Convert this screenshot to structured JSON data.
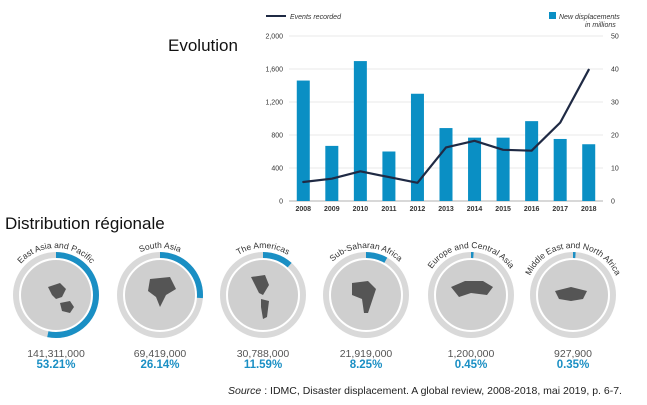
{
  "evolution_title": "Evolution",
  "distribution_title": "Distribution régionale",
  "legend": {
    "line_label": "Events recorded",
    "bar_label_line1": "New displacements",
    "bar_label_line2": "in millions"
  },
  "colors": {
    "bar": "#0a8fc4",
    "line": "#1f2a44",
    "ring_bg": "#d9d9d9",
    "ring_fg": "#1a8fc4",
    "globe": "#cfcfcf",
    "land": "#555555"
  },
  "chart_data": {
    "type": "bar",
    "categories": [
      "2008",
      "2009",
      "2010",
      "2011",
      "2012",
      "2013",
      "2014",
      "2015",
      "2016",
      "2017",
      "2018"
    ],
    "series": [
      {
        "name": "New displacements in millions",
        "axis": "right",
        "values": [
          36.5,
          16.7,
          42.4,
          15.0,
          32.5,
          22.1,
          19.2,
          19.2,
          24.2,
          18.8,
          17.2
        ]
      },
      {
        "name": "Events recorded",
        "axis": "left",
        "type": "line",
        "values": [
          230,
          270,
          360,
          290,
          220,
          650,
          730,
          620,
          610,
          950,
          1590
        ]
      }
    ],
    "y_left": {
      "ticks": [
        "0",
        "400",
        "800",
        "1,200",
        "1,600",
        "2,000"
      ],
      "ylim": [
        0,
        2000
      ]
    },
    "y_right": {
      "ticks": [
        "0",
        "10",
        "20",
        "30",
        "40",
        "50"
      ],
      "ylim": [
        0,
        50
      ]
    },
    "title": "",
    "xlabel": "",
    "ylabel": ""
  },
  "regions": [
    {
      "name": "East Asia and Pacific",
      "value": "141,311,000",
      "pct": "53.21%",
      "share": 0.5321
    },
    {
      "name": "South Asia",
      "value": "69,419,000",
      "pct": "26.14%",
      "share": 0.2614
    },
    {
      "name": "The Americas",
      "value": "30,788,000",
      "pct": "11.59%",
      "share": 0.1159
    },
    {
      "name": "Sub-Saharan Africa",
      "value": "21,919,000",
      "pct": "8.25%",
      "share": 0.0825
    },
    {
      "name": "Europe and Central Asia",
      "value": "1,200,000",
      "pct": "0.45%",
      "share": 0.0045
    },
    {
      "name": "Middle East and North Africa",
      "value": "927,900",
      "pct": "0.35%",
      "share": 0.0035
    }
  ],
  "source": {
    "label": "Source",
    "text": " : IDMC, Disaster displacement. A global review, 2008-2018, mai 2019, p. 6-7."
  }
}
